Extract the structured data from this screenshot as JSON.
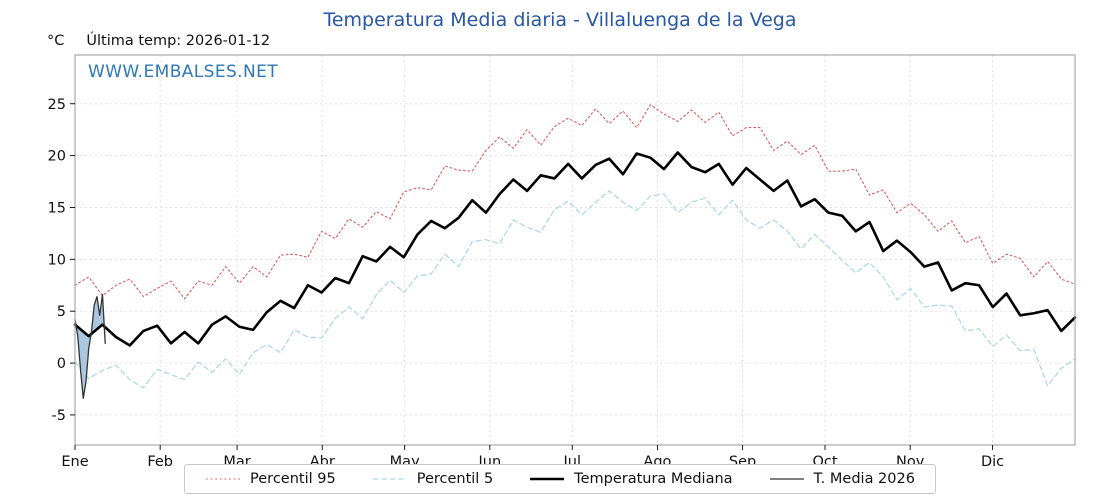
{
  "page": {
    "unit_label": "°C",
    "last_temp_label": "Última temp: 2026-01-12",
    "watermark": "WWW.EMBALSES.NET"
  },
  "colors": {
    "title": "#2757a5",
    "watermark": "#2e78b8",
    "grid": "#e0e0e0",
    "axis": "#9a9a9a",
    "p95": "#dd5c5c",
    "p5": "#a9d6e8",
    "median": "#000000",
    "current": "#333333",
    "fill": "#8fb4d6"
  },
  "chart_data": {
    "type": "line",
    "title": "Temperatura Media diaria - Villaluenga de la Vega",
    "xlabel": "",
    "ylabel": "°C",
    "ylim": [
      -7.9,
      29.7
    ],
    "yticks": [
      -5,
      0,
      5,
      10,
      15,
      20,
      25
    ],
    "x_months": [
      "Ene",
      "Feb",
      "Mar",
      "Abr",
      "May",
      "Jun",
      "Jul",
      "Ago",
      "Sep",
      "Oct",
      "Nov",
      "Dic"
    ],
    "month_start_days": [
      0,
      31,
      59,
      90,
      120,
      151,
      181,
      212,
      243,
      273,
      304,
      334
    ],
    "days_in_year": 365,
    "grid": true,
    "legend_position": "bottom",
    "annotation": "Última temp: 2026-01-12",
    "series": [
      {
        "name": "Percentil 95",
        "style": "dotted",
        "color": "#dd5c5c",
        "width": 1.1,
        "values": [
          7.5,
          8.3,
          6.5,
          7.5,
          8.1,
          6.4,
          7.2,
          7.9,
          6.2,
          7.9,
          7.5,
          9.3,
          7.7,
          9.3,
          8.3,
          10.4,
          10.5,
          10.2,
          12.7,
          12.0,
          13.9,
          13.1,
          14.6,
          13.9,
          16.5,
          16.9,
          16.7,
          19.0,
          18.6,
          18.5,
          20.5,
          21.8,
          20.7,
          22.5,
          21.0,
          22.8,
          23.6,
          22.9,
          24.5,
          23.1,
          24.3,
          22.7,
          24.9,
          24.0,
          23.3,
          24.4,
          23.2,
          24.2,
          21.9,
          22.7,
          22.7,
          20.5,
          21.4,
          20.1,
          21.0,
          18.5,
          18.5,
          18.7,
          16.2,
          16.7,
          14.5,
          15.4,
          14.3,
          12.7,
          13.7,
          11.6,
          12.2,
          9.6,
          10.5,
          10.1,
          8.3,
          9.8,
          8.1,
          7.6
        ]
      },
      {
        "name": "Percentil 5",
        "style": "dashed",
        "color": "#a9d6e8",
        "width": 1.2,
        "values": [
          0.1,
          -1.5,
          -0.7,
          -0.2,
          -1.6,
          -2.4,
          -0.6,
          -1.1,
          -1.6,
          0.1,
          -0.9,
          0.4,
          -1.1,
          1.0,
          1.8,
          1.0,
          3.2,
          2.5,
          2.4,
          4.3,
          5.4,
          4.3,
          6.6,
          8.0,
          6.8,
          8.4,
          8.6,
          10.5,
          9.3,
          11.7,
          11.9,
          11.5,
          13.8,
          13.1,
          12.6,
          14.8,
          15.6,
          14.3,
          15.5,
          16.6,
          15.5,
          14.7,
          16.1,
          16.3,
          14.5,
          15.5,
          15.9,
          14.3,
          15.7,
          13.8,
          13.0,
          13.8,
          12.7,
          11.0,
          12.4,
          11.2,
          9.9,
          8.7,
          9.7,
          8.3,
          6.1,
          7.2,
          5.4,
          5.6,
          5.5,
          3.1,
          3.3,
          1.6,
          2.7,
          1.2,
          1.3,
          -2.2,
          -0.5,
          0.4
        ]
      },
      {
        "name": "Temperatura Mediana",
        "style": "solid",
        "color": "#000000",
        "width": 2.6,
        "values": [
          3.7,
          2.6,
          3.7,
          2.5,
          1.7,
          3.1,
          3.6,
          1.9,
          3.0,
          1.9,
          3.7,
          4.5,
          3.5,
          3.2,
          4.9,
          6.0,
          5.3,
          7.5,
          6.8,
          8.2,
          7.7,
          10.3,
          9.8,
          11.2,
          10.2,
          12.4,
          13.7,
          13.0,
          14.0,
          15.7,
          14.5,
          16.3,
          17.7,
          16.6,
          18.1,
          17.8,
          19.2,
          17.8,
          19.1,
          19.7,
          18.2,
          20.2,
          19.8,
          18.7,
          20.3,
          18.9,
          18.4,
          19.2,
          17.2,
          18.8,
          17.7,
          16.6,
          17.6,
          15.1,
          15.8,
          14.5,
          14.2,
          12.7,
          13.6,
          10.8,
          11.8,
          10.7,
          9.3,
          9.7,
          7.0,
          7.7,
          7.5,
          5.4,
          6.7,
          4.6,
          4.8,
          5.1,
          3.1,
          4.4
        ]
      },
      {
        "name": "T. Media 2026",
        "style": "solid",
        "color": "#333333",
        "width": 1.3,
        "days": [
          1,
          2,
          3,
          4,
          5,
          6,
          7,
          8,
          9,
          10,
          11,
          12
        ],
        "values": [
          4.2,
          2.6,
          -0.6,
          -3.4,
          -1.8,
          1.4,
          3.0,
          5.6,
          6.4,
          4.6,
          6.6,
          1.9
        ]
      }
    ],
    "fill_between": {
      "series_a": "T. Media 2026",
      "series_b": "Temperatura Mediana",
      "color": "#8fb4d6",
      "opacity": 0.75
    },
    "legend": [
      "Percentil 95",
      "Percentil 5",
      "Temperatura Mediana",
      "T. Media 2026"
    ]
  }
}
